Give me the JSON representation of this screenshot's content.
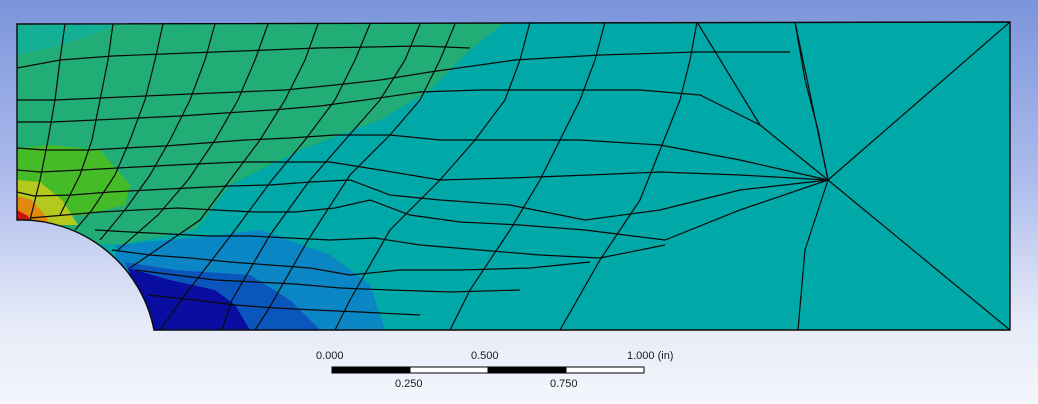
{
  "contour_colors": {
    "plate_base": "#00a8a8",
    "green_band": "#22ad76",
    "teal_band": "#14b096",
    "lime_band": "#46bb28",
    "yellow_band": "#b4c81e",
    "orange_band": "#e08a10",
    "red_band": "#c8140c",
    "light_blue_band": "#0a86c4",
    "mid_blue_band": "#0a56bc",
    "dark_blue_band": "#0a0ea0",
    "mesh_line": "#0a0a0a"
  },
  "scale_bar": {
    "top_labels": [
      "0.000",
      "0.500",
      "1.000 (in)"
    ],
    "bottom_labels": [
      "0.250",
      "0.750"
    ]
  }
}
